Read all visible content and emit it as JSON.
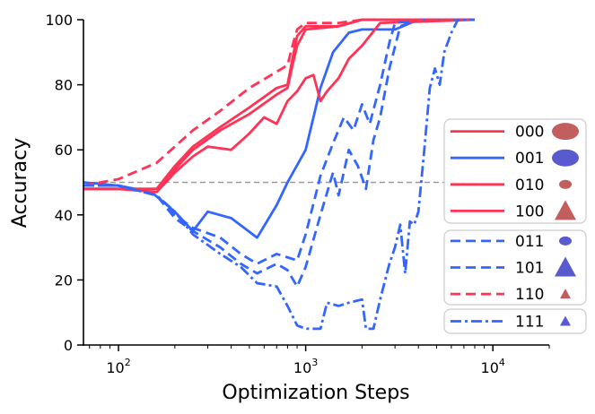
{
  "chart_data": {
    "type": "line",
    "title": "",
    "xlabel": "Optimization Steps",
    "ylabel": "Accuracy",
    "xscale": "log",
    "xlim": [
      65,
      20000
    ],
    "ylim": [
      0,
      100
    ],
    "x_ticks": [
      {
        "value": 100,
        "base": "10",
        "exp": "2"
      },
      {
        "value": 1000,
        "base": "10",
        "exp": "3"
      },
      {
        "value": 10000,
        "base": "10",
        "exp": "4"
      }
    ],
    "y_ticks": [
      {
        "value": 0,
        "label": "0"
      },
      {
        "value": 20,
        "label": "20"
      },
      {
        "value": 40,
        "label": "40"
      },
      {
        "value": 60,
        "label": "60"
      },
      {
        "value": 80,
        "label": "80"
      },
      {
        "value": 100,
        "label": "100"
      }
    ],
    "grid": false,
    "legend_position": "right",
    "reference_line": {
      "y": 50,
      "color": "#999999",
      "style": "dashed"
    },
    "colors": {
      "red": "#ff3355",
      "blue": "#3366ff",
      "red_marker": "#c25e5e",
      "blue_marker": "#5a5acf"
    },
    "series": [
      {
        "name": "000",
        "color": "#ff3355",
        "linestyle": "solid",
        "marker": "ellipse-large",
        "points": [
          [
            65,
            48
          ],
          [
            100,
            48
          ],
          [
            160,
            48
          ],
          [
            200,
            55
          ],
          [
            250,
            61
          ],
          [
            350,
            67
          ],
          [
            500,
            73
          ],
          [
            700,
            79
          ],
          [
            800,
            80
          ],
          [
            850,
            88
          ],
          [
            900,
            95
          ],
          [
            1000,
            98
          ],
          [
            1500,
            98
          ],
          [
            2000,
            100
          ],
          [
            8000,
            100
          ]
        ]
      },
      {
        "name": "001",
        "color": "#3366ff",
        "linestyle": "solid",
        "marker": "ellipse-large",
        "points": [
          [
            65,
            50
          ],
          [
            100,
            49
          ],
          [
            150,
            47
          ],
          [
            200,
            41
          ],
          [
            250,
            35
          ],
          [
            300,
            41
          ],
          [
            400,
            39
          ],
          [
            550,
            33
          ],
          [
            700,
            43
          ],
          [
            800,
            50
          ],
          [
            1000,
            60
          ],
          [
            1200,
            79
          ],
          [
            1400,
            90
          ],
          [
            1700,
            96
          ],
          [
            2000,
            97
          ],
          [
            3000,
            97
          ],
          [
            4000,
            100
          ],
          [
            8000,
            100
          ]
        ]
      },
      {
        "name": "010",
        "color": "#ff3355",
        "linestyle": "solid",
        "marker": "ellipse-small",
        "points": [
          [
            65,
            48
          ],
          [
            100,
            48
          ],
          [
            160,
            47
          ],
          [
            200,
            53
          ],
          [
            250,
            58
          ],
          [
            300,
            61
          ],
          [
            400,
            60
          ],
          [
            500,
            65
          ],
          [
            600,
            70
          ],
          [
            700,
            68
          ],
          [
            800,
            75
          ],
          [
            900,
            78
          ],
          [
            1000,
            82
          ],
          [
            1100,
            83
          ],
          [
            1200,
            75
          ],
          [
            1300,
            78
          ],
          [
            1500,
            82
          ],
          [
            1700,
            88
          ],
          [
            2000,
            92
          ],
          [
            2500,
            99
          ],
          [
            8000,
            100
          ]
        ]
      },
      {
        "name": "100",
        "color": "#ff3355",
        "linestyle": "solid",
        "marker": "triangle-large",
        "points": [
          [
            65,
            48
          ],
          [
            100,
            48
          ],
          [
            160,
            48
          ],
          [
            200,
            54
          ],
          [
            250,
            60
          ],
          [
            350,
            66
          ],
          [
            500,
            71
          ],
          [
            700,
            77
          ],
          [
            800,
            79
          ],
          [
            850,
            86
          ],
          [
            900,
            92
          ],
          [
            1000,
            97
          ],
          [
            1500,
            98
          ],
          [
            2000,
            100
          ],
          [
            8000,
            100
          ]
        ]
      },
      {
        "name": "011",
        "color": "#3366ff",
        "linestyle": "dashed",
        "marker": "ellipse-small",
        "points": [
          [
            65,
            49
          ],
          [
            100,
            49
          ],
          [
            160,
            46
          ],
          [
            200,
            40
          ],
          [
            250,
            36
          ],
          [
            350,
            33
          ],
          [
            450,
            28
          ],
          [
            550,
            25
          ],
          [
            700,
            28
          ],
          [
            900,
            26
          ],
          [
            1000,
            34
          ],
          [
            1200,
            52
          ],
          [
            1400,
            62
          ],
          [
            1600,
            70
          ],
          [
            1800,
            66
          ],
          [
            2000,
            74
          ],
          [
            2200,
            68
          ],
          [
            2500,
            80
          ],
          [
            2800,
            93
          ],
          [
            3000,
            99
          ],
          [
            4000,
            100
          ],
          [
            8000,
            100
          ]
        ]
      },
      {
        "name": "101",
        "color": "#3366ff",
        "linestyle": "dashed",
        "marker": "triangle-large",
        "points": [
          [
            65,
            49
          ],
          [
            100,
            49
          ],
          [
            160,
            46
          ],
          [
            200,
            39
          ],
          [
            250,
            35
          ],
          [
            350,
            30
          ],
          [
            450,
            25
          ],
          [
            550,
            22
          ],
          [
            700,
            25
          ],
          [
            800,
            23
          ],
          [
            900,
            18
          ],
          [
            1000,
            24
          ],
          [
            1200,
            40
          ],
          [
            1400,
            53
          ],
          [
            1500,
            46
          ],
          [
            1700,
            60
          ],
          [
            1900,
            55
          ],
          [
            2100,
            48
          ],
          [
            2300,
            63
          ],
          [
            2500,
            70
          ],
          [
            2800,
            85
          ],
          [
            3200,
            98
          ],
          [
            4000,
            100
          ],
          [
            8000,
            100
          ]
        ]
      },
      {
        "name": "110",
        "color": "#ff3355",
        "linestyle": "dashed",
        "marker": "triangle-small",
        "points": [
          [
            65,
            49
          ],
          [
            100,
            51
          ],
          [
            160,
            56
          ],
          [
            200,
            61
          ],
          [
            250,
            66
          ],
          [
            350,
            72
          ],
          [
            500,
            79
          ],
          [
            700,
            84
          ],
          [
            800,
            86
          ],
          [
            850,
            92
          ],
          [
            900,
            97
          ],
          [
            1000,
            99
          ],
          [
            1500,
            99
          ],
          [
            2000,
            100
          ],
          [
            8000,
            100
          ]
        ]
      },
      {
        "name": "111",
        "color": "#3366ff",
        "linestyle": "dashdot",
        "marker": "triangle-small",
        "points": [
          [
            65,
            49
          ],
          [
            100,
            49
          ],
          [
            160,
            46
          ],
          [
            200,
            41
          ],
          [
            250,
            34
          ],
          [
            350,
            28
          ],
          [
            450,
            24
          ],
          [
            550,
            19
          ],
          [
            700,
            18
          ],
          [
            800,
            12
          ],
          [
            900,
            6
          ],
          [
            1000,
            5
          ],
          [
            1200,
            5
          ],
          [
            1300,
            13
          ],
          [
            1500,
            12
          ],
          [
            1700,
            13
          ],
          [
            2000,
            14
          ],
          [
            2100,
            5
          ],
          [
            2300,
            5
          ],
          [
            2500,
            14
          ],
          [
            2800,
            25
          ],
          [
            3000,
            30
          ],
          [
            3200,
            37
          ],
          [
            3400,
            22
          ],
          [
            3600,
            38
          ],
          [
            3800,
            37
          ],
          [
            4000,
            41
          ],
          [
            4300,
            60
          ],
          [
            4600,
            79
          ],
          [
            4900,
            85
          ],
          [
            5200,
            80
          ],
          [
            5500,
            90
          ],
          [
            6000,
            96
          ],
          [
            6500,
            100
          ],
          [
            8000,
            100
          ]
        ]
      }
    ],
    "legend_groups": [
      [
        "000",
        "001",
        "010",
        "100"
      ],
      [
        "011",
        "101",
        "110"
      ],
      [
        "111"
      ]
    ]
  }
}
